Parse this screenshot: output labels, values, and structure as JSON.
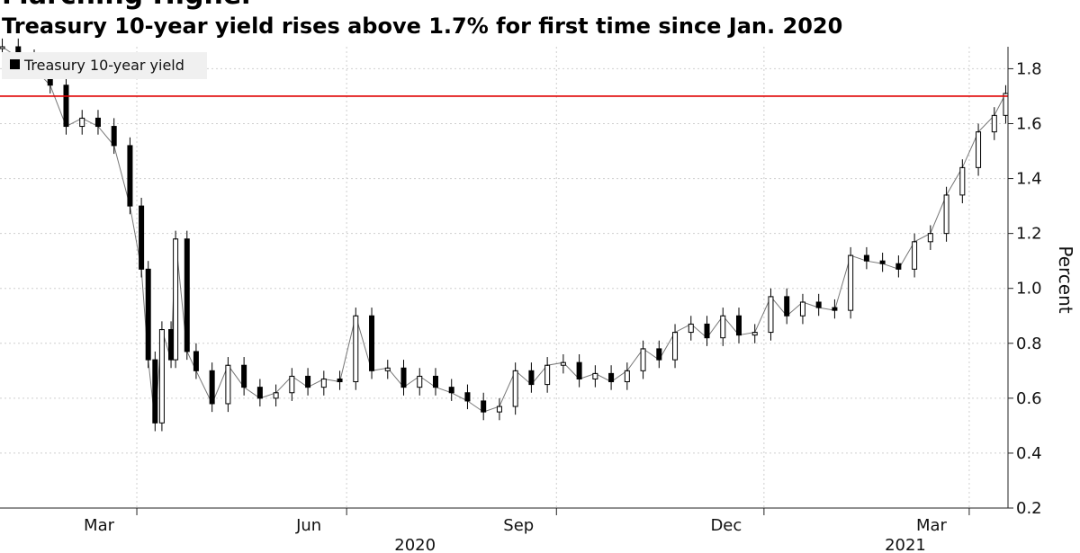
{
  "header": {
    "title": "Marching Higher",
    "subtitle": "Treasury 10-year yield rises above 1.7% for first time since Jan. 2020"
  },
  "chart_data": {
    "type": "candlestick",
    "series": [
      {
        "name": "Treasury 10-year yield",
        "color": "#000000",
        "x": [
          "2020-01-02",
          "2020-01-09",
          "2020-01-16",
          "2020-01-23",
          "2020-01-30",
          "2020-02-06",
          "2020-02-13",
          "2020-02-20",
          "2020-02-27",
          "2020-03-03",
          "2020-03-06",
          "2020-03-09",
          "2020-03-12",
          "2020-03-16",
          "2020-03-18",
          "2020-03-23",
          "2020-03-27",
          "2020-04-03",
          "2020-04-10",
          "2020-04-17",
          "2020-04-24",
          "2020-05-01",
          "2020-05-08",
          "2020-05-15",
          "2020-05-22",
          "2020-05-29",
          "2020-06-05",
          "2020-06-12",
          "2020-06-19",
          "2020-06-26",
          "2020-07-03",
          "2020-07-10",
          "2020-07-17",
          "2020-07-24",
          "2020-07-31",
          "2020-08-07",
          "2020-08-14",
          "2020-08-21",
          "2020-08-28",
          "2020-09-04",
          "2020-09-11",
          "2020-09-18",
          "2020-09-25",
          "2020-10-02",
          "2020-10-09",
          "2020-10-16",
          "2020-10-23",
          "2020-10-30",
          "2020-11-06",
          "2020-11-13",
          "2020-11-20",
          "2020-11-27",
          "2020-12-04",
          "2020-12-11",
          "2020-12-18",
          "2020-12-25",
          "2021-01-01",
          "2021-01-08",
          "2021-01-15",
          "2021-01-22",
          "2021-01-29",
          "2021-02-05",
          "2021-02-12",
          "2021-02-19",
          "2021-02-26",
          "2021-03-05",
          "2021-03-12",
          "2021-03-17"
        ],
        "values": [
          1.88,
          1.84,
          1.8,
          1.74,
          1.59,
          1.62,
          1.59,
          1.52,
          1.3,
          1.07,
          0.74,
          0.51,
          0.85,
          0.74,
          1.18,
          0.77,
          0.7,
          0.58,
          0.72,
          0.64,
          0.6,
          0.62,
          0.68,
          0.64,
          0.67,
          0.66,
          0.9,
          0.7,
          0.71,
          0.64,
          0.68,
          0.64,
          0.62,
          0.59,
          0.55,
          0.57,
          0.7,
          0.65,
          0.72,
          0.73,
          0.67,
          0.69,
          0.66,
          0.7,
          0.78,
          0.74,
          0.84,
          0.87,
          0.82,
          0.9,
          0.83,
          0.84,
          0.97,
          0.9,
          0.95,
          0.93,
          0.92,
          1.12,
          1.1,
          1.09,
          1.07,
          1.17,
          1.2,
          1.34,
          1.44,
          1.57,
          1.63,
          1.71
        ]
      }
    ],
    "threshold": {
      "value": 1.7,
      "color": "#e00000"
    },
    "y_axis": {
      "label": "Percent",
      "ticks": [
        "0.2",
        "0.4",
        "0.6",
        "0.8",
        "1.0",
        "1.2",
        "1.4",
        "1.6",
        "1.8"
      ],
      "ylim": [
        0.2,
        1.88
      ],
      "position": "right"
    },
    "x_axis": {
      "range": [
        "2020-01-01",
        "2021-03-18"
      ],
      "month_ticks": [
        {
          "label": "Mar",
          "date": "2020-03-01"
        },
        {
          "label": "Jun",
          "date": "2020-06-01"
        },
        {
          "label": "Sep",
          "date": "2020-09-01"
        },
        {
          "label": "Dec",
          "date": "2020-12-01"
        },
        {
          "label": "Mar",
          "date": "2021-03-01"
        }
      ],
      "year_labels": [
        {
          "label": "2020",
          "date": "2020-07-01"
        },
        {
          "label": "2021",
          "date": "2021-02-01"
        }
      ]
    },
    "legend": {
      "position": "top-left"
    },
    "grid": true
  }
}
